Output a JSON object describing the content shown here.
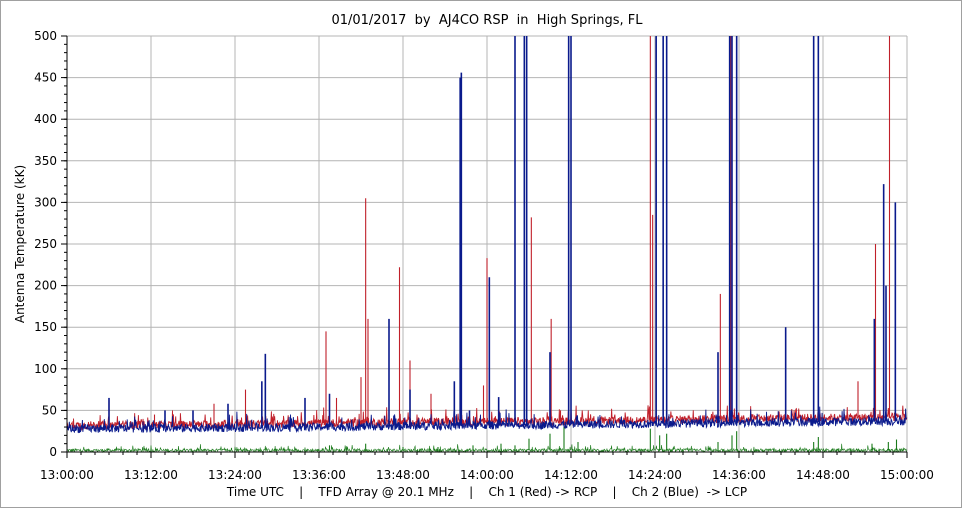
{
  "chart_data": {
    "type": "line",
    "title": "01/01/2017  by  AJ4CO RSP  in  High Springs, FL",
    "ylabel": "Antenna Temperature (kK)",
    "xlabel": "Time UTC    |    TFD Array @ 20.1 MHz    |    Ch 1 (Red) -> RCP    |    Ch 2 (Blue)  -> LCP",
    "xlim": [
      "13:00:00",
      "15:00:00"
    ],
    "ylim": [
      0,
      500
    ],
    "grid": true,
    "x_tick_labels": [
      "13:00:00",
      "13:12:00",
      "13:24:00",
      "13:36:00",
      "13:48:00",
      "14:00:00",
      "14:12:00",
      "14:24:00",
      "14:36:00",
      "14:48:00",
      "15:00:00"
    ],
    "y_tick_labels": [
      "0",
      "50",
      "100",
      "150",
      "200",
      "250",
      "300",
      "350",
      "400",
      "450",
      "500"
    ],
    "colors": {
      "ch1": "#c0202a",
      "ch2": "#0a1a8c",
      "diff": "#1a7a1a",
      "grid": "#b4b4b4"
    },
    "series": [
      {
        "key": "ch1",
        "baseline": [
          [
            "13:00:00",
            32
          ],
          [
            "13:24:00",
            33
          ],
          [
            "13:48:00",
            36
          ],
          [
            "14:12:00",
            37
          ],
          [
            "14:36:00",
            40
          ],
          [
            "15:00:00",
            42
          ]
        ],
        "spikes": [
          [
            "13:06:00",
            62
          ],
          [
            "13:12:30",
            45
          ],
          [
            "13:21:00",
            58
          ],
          [
            "13:25:30",
            75
          ],
          [
            "13:37:00",
            145
          ],
          [
            "13:38:30",
            65
          ],
          [
            "13:42:00",
            90
          ],
          [
            "13:42:40",
            305
          ],
          [
            "13:43:00",
            160
          ],
          [
            "13:47:30",
            222
          ],
          [
            "13:49:00",
            110
          ],
          [
            "13:52:00",
            70
          ],
          [
            "13:59:30",
            80
          ],
          [
            "14:00:00",
            233
          ],
          [
            "14:06:20",
            282
          ],
          [
            "14:09:10",
            160
          ],
          [
            "14:10:30",
            50
          ],
          [
            "14:23:20",
            500
          ],
          [
            "14:23:40",
            285
          ],
          [
            "14:33:20",
            190
          ],
          [
            "14:34:50",
            500
          ],
          [
            "14:47:20",
            80
          ],
          [
            "14:53:00",
            85
          ],
          [
            "14:55:30",
            250
          ],
          [
            "14:57:30",
            500
          ]
        ]
      },
      {
        "key": "ch2",
        "baseline": [
          [
            "13:00:00",
            28
          ],
          [
            "13:24:00",
            29
          ],
          [
            "13:48:00",
            31
          ],
          [
            "14:12:00",
            33
          ],
          [
            "14:36:00",
            35
          ],
          [
            "15:00:00",
            37
          ]
        ],
        "spikes": [
          [
            "13:06:00",
            65
          ],
          [
            "13:14:00",
            50
          ],
          [
            "13:18:00",
            50
          ],
          [
            "13:23:00",
            58
          ],
          [
            "13:27:50",
            85
          ],
          [
            "13:28:20",
            118
          ],
          [
            "13:34:00",
            65
          ],
          [
            "13:37:30",
            70
          ],
          [
            "13:46:00",
            160
          ],
          [
            "13:49:00",
            75
          ],
          [
            "13:55:20",
            85
          ],
          [
            "13:56:10",
            450
          ],
          [
            "13:56:20",
            456
          ],
          [
            "13:57:30",
            50
          ],
          [
            "14:00:20",
            210
          ],
          [
            "14:01:40",
            66
          ],
          [
            "14:04:00",
            500
          ],
          [
            "14:05:20",
            500
          ],
          [
            "14:05:40",
            500
          ],
          [
            "14:09:00",
            120
          ],
          [
            "14:11:40",
            500
          ],
          [
            "14:12:00",
            500
          ],
          [
            "14:24:10",
            500
          ],
          [
            "14:25:10",
            500
          ],
          [
            "14:25:40",
            500
          ],
          [
            "14:33:00",
            120
          ],
          [
            "14:34:40",
            500
          ],
          [
            "14:35:00",
            500
          ],
          [
            "14:35:40",
            500
          ],
          [
            "14:42:40",
            150
          ],
          [
            "14:46:40",
            500
          ],
          [
            "14:47:20",
            500
          ],
          [
            "14:55:20",
            160
          ],
          [
            "14:56:40",
            322
          ],
          [
            "14:57:00",
            200
          ],
          [
            "14:58:20",
            300
          ]
        ]
      },
      {
        "key": "diff",
        "baseline": [
          [
            "13:00:00",
            2
          ],
          [
            "15:00:00",
            2
          ]
        ],
        "spikes": [
          [
            "13:06:00",
            4
          ],
          [
            "13:23:30",
            5
          ],
          [
            "13:37:30",
            8
          ],
          [
            "13:42:40",
            10
          ],
          [
            "13:48:00",
            6
          ],
          [
            "13:53:00",
            6
          ],
          [
            "13:58:00",
            8
          ],
          [
            "14:02:00",
            10
          ],
          [
            "14:04:00",
            8
          ],
          [
            "14:06:00",
            16
          ],
          [
            "14:09:00",
            22
          ],
          [
            "14:11:00",
            30
          ],
          [
            "14:13:00",
            12
          ],
          [
            "14:23:20",
            28
          ],
          [
            "14:24:40",
            20
          ],
          [
            "14:25:40",
            22
          ],
          [
            "14:33:00",
            12
          ],
          [
            "14:35:00",
            20
          ],
          [
            "14:35:40",
            25
          ],
          [
            "14:46:40",
            12
          ],
          [
            "14:47:20",
            18
          ],
          [
            "14:55:00",
            10
          ],
          [
            "14:57:20",
            12
          ],
          [
            "14:58:30",
            15
          ]
        ]
      }
    ]
  }
}
